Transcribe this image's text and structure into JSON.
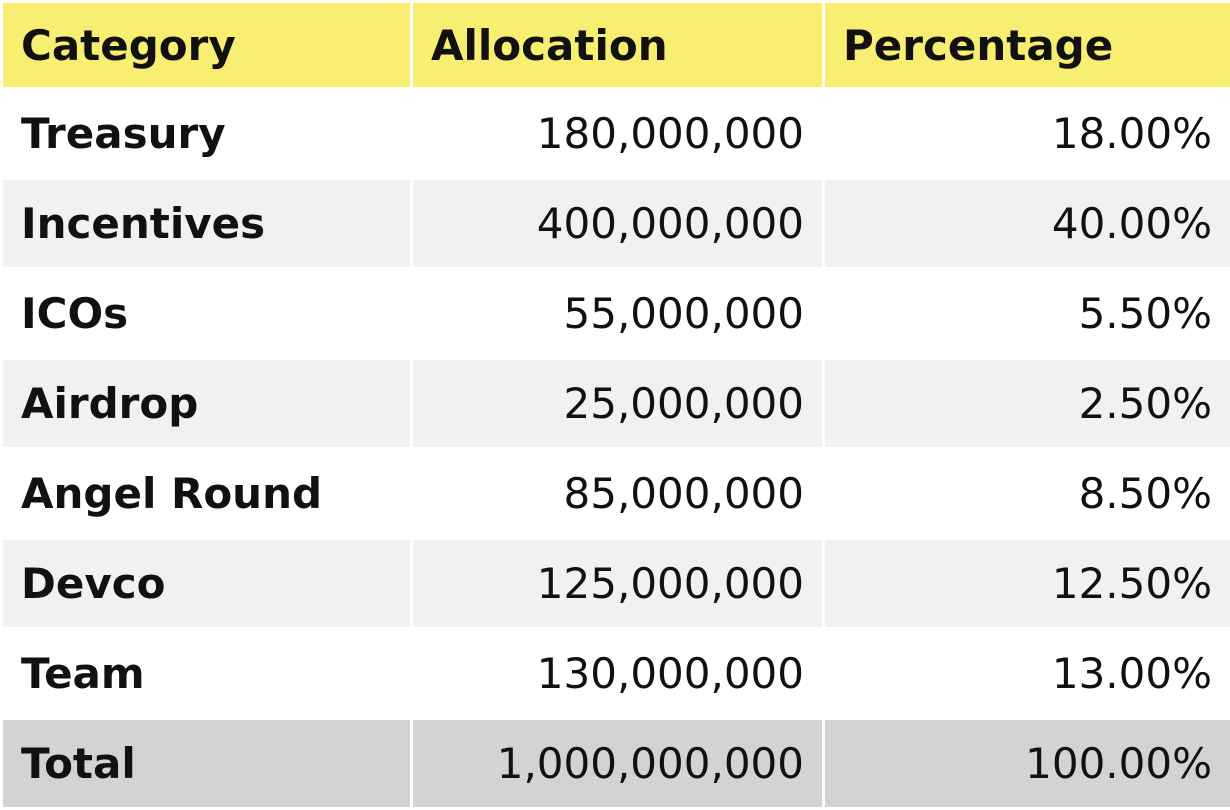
{
  "table": {
    "headers": [
      "Category",
      "Allocation",
      "Percentage"
    ],
    "rows": [
      [
        "Treasury",
        "180,000,000",
        "18.00%"
      ],
      [
        "Incentives",
        "400,000,000",
        "40.00%"
      ],
      [
        "ICOs",
        "55,000,000",
        "5.50%"
      ],
      [
        "Airdrop",
        "25,000,000",
        "2.50%"
      ],
      [
        "Angel Round",
        "85,000,000",
        "8.50%"
      ],
      [
        "Devco",
        "125,000,000",
        "12.50%"
      ],
      [
        "Team",
        "130,000,000",
        "13.00%"
      ]
    ],
    "total": [
      "Total",
      "1,000,000,000",
      "100.00%"
    ]
  }
}
